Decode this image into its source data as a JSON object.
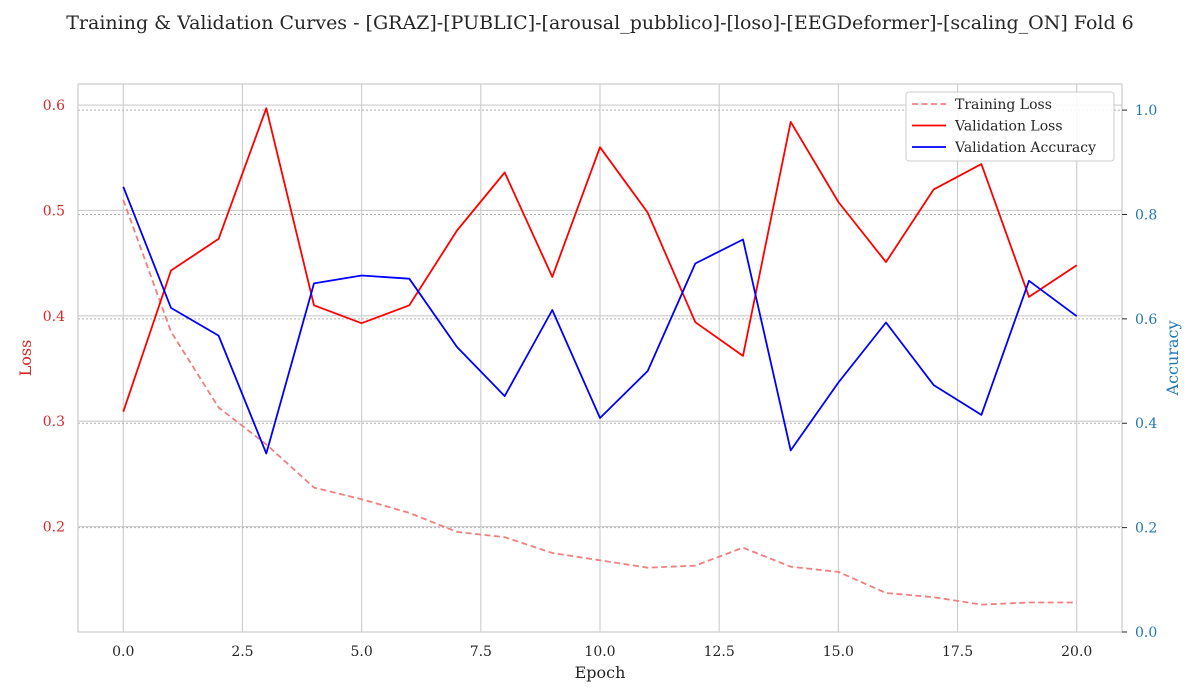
{
  "chart_data": {
    "type": "line",
    "title": "Training & Validation Curves - [GRAZ]-[PUBLIC]-[arousal_pubblico]-[loso]-[EEGDeformer]-[scaling_ON] Fold 6",
    "xlabel": "Epoch",
    "ylabel_left": "Loss",
    "ylabel_right": "Accuracy",
    "xlim": [
      -0.95,
      20.95
    ],
    "ylim_left": [
      0.1,
      0.62
    ],
    "ylim_right": [
      0.0,
      1.05
    ],
    "x_ticks": [
      0.0,
      2.5,
      5.0,
      7.5,
      10.0,
      12.5,
      15.0,
      17.5,
      20.0
    ],
    "x_tick_labels": [
      "0.0",
      "2.5",
      "5.0",
      "7.5",
      "10.0",
      "12.5",
      "15.0",
      "17.5",
      "20.0"
    ],
    "y_left_ticks": [
      0.2,
      0.3,
      0.4,
      0.5,
      0.6
    ],
    "y_left_tick_labels": [
      "0.2",
      "0.3",
      "0.4",
      "0.5",
      "0.6"
    ],
    "y_right_ticks": [
      0.0,
      0.2,
      0.4,
      0.6,
      0.8,
      1.0
    ],
    "y_right_tick_labels": [
      "0.0",
      "0.2",
      "0.4",
      "0.6",
      "0.8",
      "1.0"
    ],
    "grid": true,
    "legend_position": "top-right",
    "x": [
      0,
      1,
      2,
      3,
      4,
      5,
      6,
      7,
      8,
      9,
      10,
      11,
      12,
      13,
      14,
      15,
      16,
      17,
      18,
      19,
      20
    ],
    "series": [
      {
        "name": "Training Loss",
        "axis": "left",
        "color": "#f08080",
        "style": "dashed",
        "values": [
          0.51,
          0.385,
          0.313,
          0.278,
          0.237,
          0.226,
          0.213,
          0.195,
          0.19,
          0.175,
          0.168,
          0.161,
          0.163,
          0.18,
          0.162,
          0.157,
          0.137,
          0.133,
          0.126,
          0.128,
          0.128
        ]
      },
      {
        "name": "Validation Loss",
        "axis": "left",
        "color": "#ff0000",
        "style": "solid",
        "values": [
          0.309,
          0.443,
          0.473,
          0.597,
          0.41,
          0.393,
          0.41,
          0.481,
          0.536,
          0.437,
          0.56,
          0.498,
          0.394,
          0.362,
          0.584,
          0.508,
          0.451,
          0.52,
          0.544,
          0.418,
          0.448
        ]
      },
      {
        "name": "Validation Accuracy",
        "axis": "right",
        "color": "#0000ff",
        "style": "solid",
        "values": [
          0.853,
          0.621,
          0.568,
          0.342,
          0.668,
          0.683,
          0.677,
          0.546,
          0.452,
          0.617,
          0.41,
          0.5,
          0.706,
          0.752,
          0.348,
          0.478,
          0.593,
          0.473,
          0.416,
          0.673,
          0.605
        ]
      }
    ],
    "colors": {
      "left_axis": "#d62728",
      "right_axis": "#1f77b4",
      "grid": "#cccccc",
      "spine": "#cccccc"
    }
  }
}
